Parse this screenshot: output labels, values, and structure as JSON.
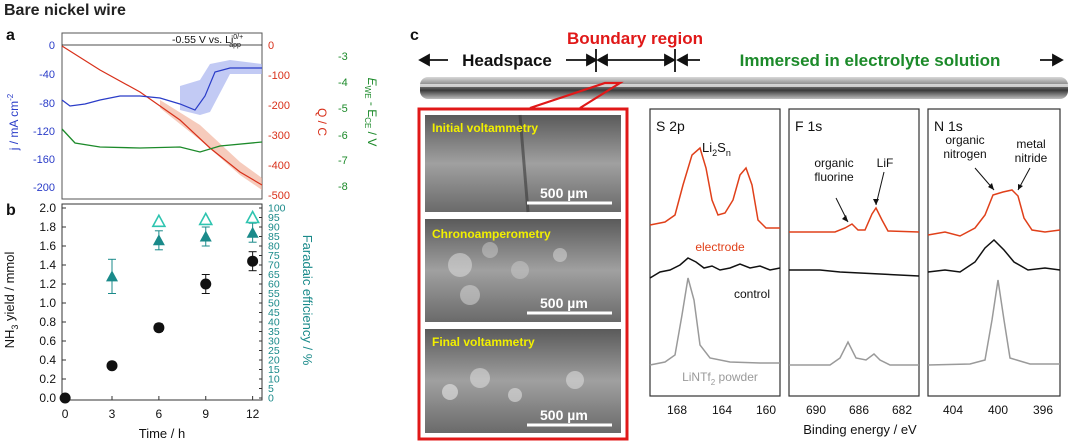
{
  "figure_title": "Bare nickel wire",
  "panel_a": {
    "label": "a",
    "annotation": "-0.55 V vs. Li",
    "annotation_sup": "0/+",
    "annotation_sub": "app",
    "left_axis": {
      "label": "j / mA cm",
      "label_sup": "-2",
      "ticks": [
        "0",
        "-40",
        "-80",
        "-120",
        "-160",
        "-200"
      ],
      "color": "#2a3cc8"
    },
    "mid_axis": {
      "label": "Q / C",
      "ticks": [
        "0",
        "-100",
        "-200",
        "-300",
        "-400",
        "-500"
      ],
      "color": "#d8301a"
    },
    "right_axis": {
      "label": "E",
      "label_sub1": "WE",
      "label_mid": " - E",
      "label_sub2": "CE",
      "label_end": " / V",
      "ticks": [
        "-3",
        "-4",
        "-5",
        "-6",
        "-7",
        "-8"
      ],
      "color": "#1c8a2a"
    }
  },
  "panel_b": {
    "label": "b",
    "ylabel_pre": "NH",
    "ylabel_sub": "3",
    "ylabel_post": " yield / mmol",
    "y2label": "Faradaic efficiency / %",
    "xlabel": "Time / h",
    "chart_data": {
      "type": "scatter",
      "x": [
        0,
        3,
        6,
        9,
        12
      ],
      "series": [
        {
          "values": [
            0,
            0.34,
            0.74,
            1.2,
            1.44
          ],
          "errors": [
            0,
            0,
            0.04,
            0.1,
            0.1
          ]
        },
        {
          "values": [
            null,
            64,
            83,
            85,
            87
          ],
          "errors": [
            null,
            9,
            5,
            5,
            5
          ]
        },
        {
          "values": [
            null,
            null,
            93,
            94,
            95
          ],
          "errors": [
            null,
            null,
            2,
            2,
            2
          ]
        }
      ],
      "yticks": [
        "0.0",
        "0.2",
        "0.4",
        "0.6",
        "0.8",
        "1.0",
        "1.2",
        "1.4",
        "1.6",
        "1.8",
        "2.0"
      ],
      "y2ticks": [
        "0",
        "5",
        "10",
        "15",
        "20",
        "25",
        "30",
        "35",
        "40",
        "45",
        "50",
        "55",
        "60",
        "65",
        "70",
        "75",
        "80",
        "85",
        "90",
        "95",
        "100"
      ],
      "xticks": [
        "0",
        "3",
        "6",
        "9",
        "12"
      ],
      "ylim": [
        0,
        2.0
      ],
      "y2lim": [
        0,
        100
      ]
    }
  },
  "panel_c": {
    "label": "c",
    "boundary_title": "Boundary region",
    "headspace_label": "Headspace",
    "immersed_label": "Immersed in electrolyte solution",
    "sem_panels": [
      "Initial voltammetry",
      "Chronoamperometry",
      "Final voltammetry"
    ],
    "scale_bar": "500 µm",
    "xps": {
      "xlabel": "Binding energy / eV",
      "s2p": {
        "title": "S 2p",
        "peak_label": "Li",
        "peak_sub1": "2",
        "peak_mid": "S",
        "peak_sub2": "n",
        "ticks": [
          "168",
          "164",
          "160"
        ]
      },
      "f1s": {
        "title": "F 1s",
        "label1_l1": "organic",
        "label1_l2": "fluorine",
        "label2": "LiF",
        "ticks": [
          "690",
          "686",
          "682"
        ]
      },
      "n1s": {
        "title": "N 1s",
        "label1_l1": "organic",
        "label1_l2": "nitrogen",
        "label2_l1": "metal",
        "label2_l2": "nitride",
        "ticks": [
          "404",
          "400",
          "396"
        ]
      },
      "legend": {
        "electrode": "electrode",
        "control": "control",
        "powder_pre": "LiNTf",
        "powder_sub": "2",
        "powder_post": " powder"
      },
      "colors": {
        "electrode": "#e0401a",
        "control": "#111111",
        "powder": "#9a9a9a"
      }
    }
  }
}
